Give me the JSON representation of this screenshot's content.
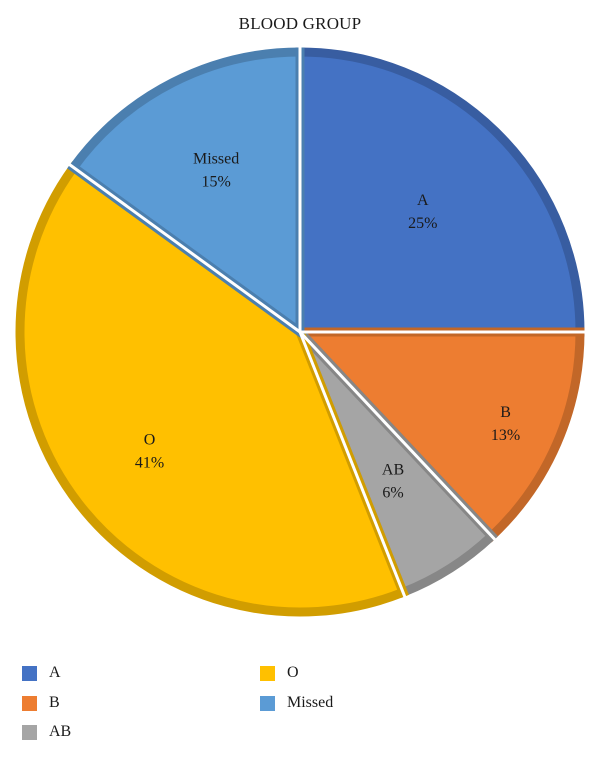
{
  "chart_data": {
    "type": "pie",
    "title": "BLOOD GROUP",
    "categories": [
      "A",
      "B",
      "AB",
      "O",
      "Missed"
    ],
    "values": [
      25,
      13,
      6,
      41,
      15
    ],
    "value_labels": [
      "25%",
      "13%",
      "6%",
      "41%",
      "15%"
    ],
    "colors": [
      "#4472C4",
      "#ED7D31",
      "#A5A5A5",
      "#FFC000",
      "#5B9BD5"
    ],
    "slice_order": "clockwise from top",
    "legend": {
      "placement": "bottom",
      "entries": [
        "A",
        "O",
        "B",
        "Missed",
        "AB"
      ]
    }
  }
}
